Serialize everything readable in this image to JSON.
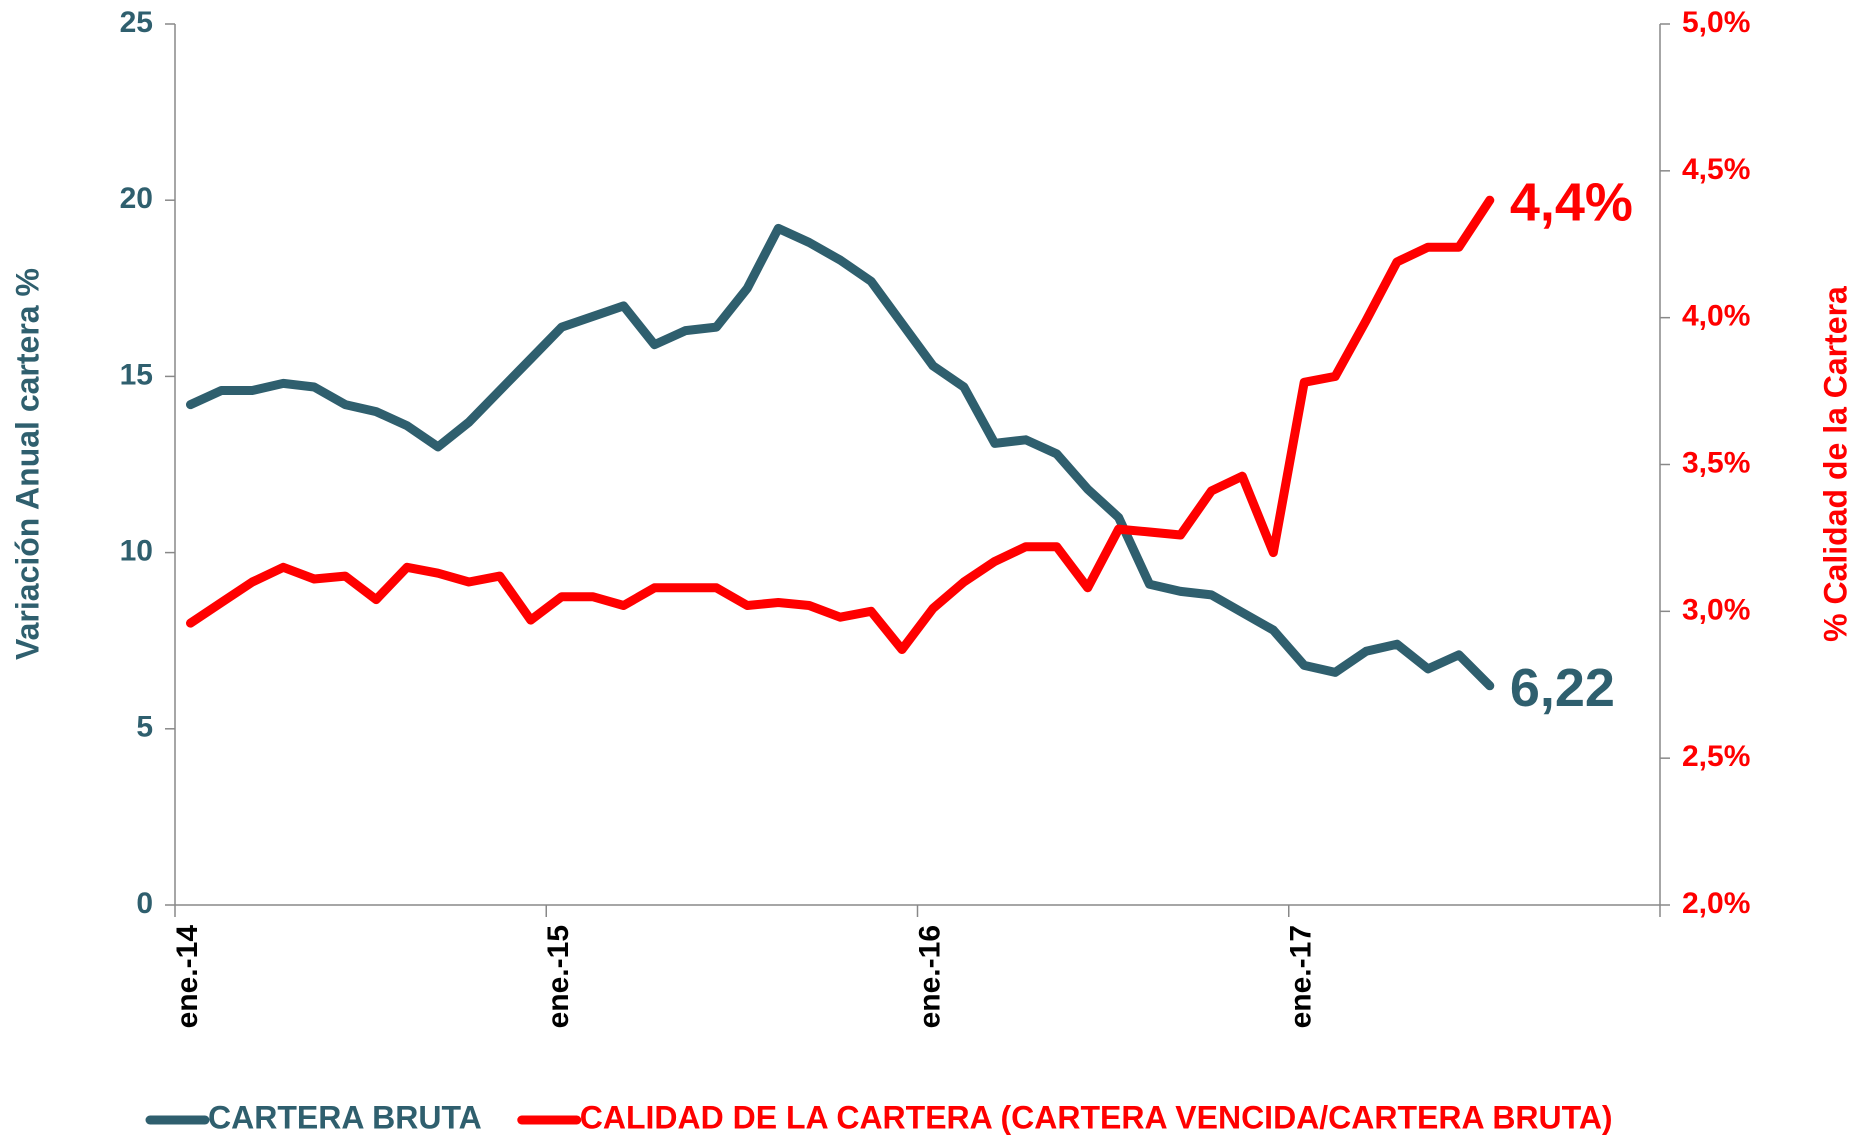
{
  "chart_data": {
    "type": "line",
    "y_label": "Variación Anual cartera %",
    "y2_label": "% Calidad de la Cartera",
    "categories": [
      "ene.-14",
      null,
      null,
      null,
      null,
      null,
      null,
      null,
      null,
      null,
      null,
      null,
      "ene.-15",
      null,
      null,
      null,
      null,
      null,
      null,
      null,
      null,
      null,
      null,
      null,
      "ene.-16",
      null,
      null,
      null,
      null,
      null,
      null,
      null,
      null,
      null,
      null,
      null,
      "ene.-17",
      null,
      null,
      null,
      null,
      null,
      null,
      null,
      null,
      null,
      null,
      null
    ],
    "ylim": [
      0,
      25
    ],
    "yticks": [
      0,
      5,
      10,
      15,
      20,
      25
    ],
    "y2lim": [
      2,
      5
    ],
    "y2ticks": [
      {
        "value": 2,
        "label": "2,0%"
      },
      {
        "value": 2.5,
        "label": "2,5%"
      },
      {
        "value": 3,
        "label": "3,0%"
      },
      {
        "value": 3.5,
        "label": "3,5%"
      },
      {
        "value": 4,
        "label": "4,0%"
      },
      {
        "value": 4.5,
        "label": "4,5%"
      },
      {
        "value": 5,
        "label": "5,0%"
      }
    ],
    "legend": "bottom",
    "series": [
      {
        "name": "CARTERA BRUTA",
        "color": "#2f5f6e",
        "values": [
          14.2,
          14.6,
          14.6,
          14.8,
          14.7,
          14.2,
          14.0,
          13.6,
          13.0,
          13.7,
          14.6,
          15.5,
          16.4,
          16.7,
          17.0,
          15.9,
          16.3,
          16.4,
          17.5,
          19.2,
          18.8,
          18.3,
          17.7,
          16.5,
          15.3,
          14.7,
          13.1,
          13.2,
          12.8,
          11.8,
          11.0,
          9.1,
          8.9,
          8.8,
          8.3,
          7.8,
          6.8,
          6.6,
          7.2,
          7.4,
          6.7,
          7.1,
          6.22,
          null,
          null,
          null,
          null,
          null
        ],
        "value_labels": [
          null,
          null,
          null,
          null,
          null,
          null,
          null,
          null,
          null,
          null,
          null,
          null,
          null,
          null,
          null,
          null,
          null,
          null,
          null,
          null,
          null,
          null,
          null,
          null,
          null,
          null,
          null,
          null,
          null,
          null,
          null,
          null,
          null,
          null,
          null,
          null,
          null,
          null,
          null,
          null,
          null,
          null,
          "6,22",
          null,
          null,
          null,
          null,
          null
        ]
      },
      {
        "name": "CALIDAD DE LA CARTERA (CARTERA VENCIDA/CARTERA BRUTA)",
        "color": "#ff0000",
        "axis": "y2",
        "values": [
          2.96,
          3.03,
          3.1,
          3.15,
          3.11,
          3.12,
          3.04,
          3.15,
          3.13,
          3.1,
          3.12,
          2.97,
          3.05,
          3.05,
          3.02,
          3.08,
          3.08,
          3.08,
          3.02,
          3.03,
          3.02,
          2.98,
          3.0,
          2.87,
          3.01,
          3.1,
          3.17,
          3.22,
          3.22,
          3.08,
          3.28,
          3.27,
          3.26,
          3.41,
          3.46,
          3.2,
          3.78,
          3.8,
          3.99,
          4.19,
          4.24,
          4.24,
          4.4,
          null,
          null,
          null,
          null,
          null
        ],
        "value_labels": [
          null,
          null,
          null,
          null,
          null,
          null,
          null,
          null,
          null,
          null,
          null,
          null,
          null,
          null,
          null,
          null,
          null,
          null,
          null,
          null,
          null,
          null,
          null,
          null,
          null,
          null,
          null,
          null,
          null,
          null,
          null,
          null,
          null,
          null,
          null,
          null,
          null,
          null,
          null,
          null,
          null,
          null,
          "4,4%",
          null,
          null,
          null,
          null,
          null
        ]
      }
    ]
  }
}
